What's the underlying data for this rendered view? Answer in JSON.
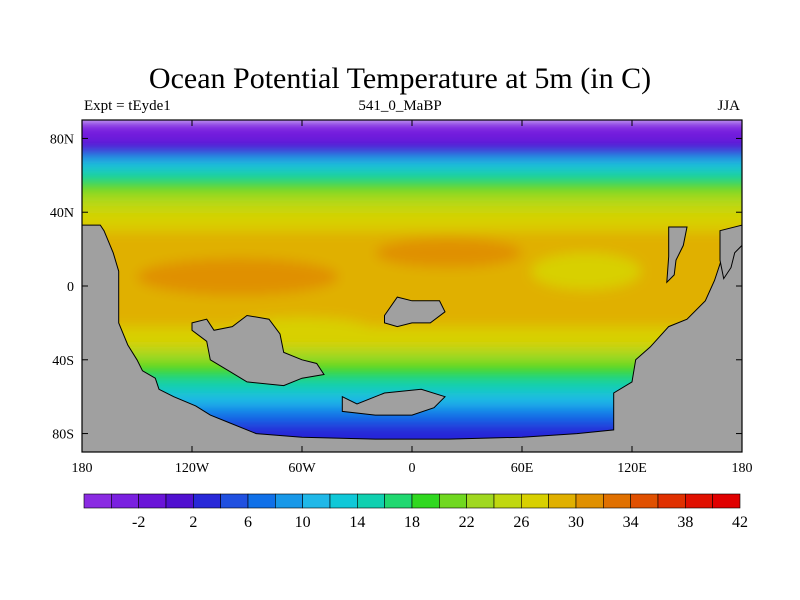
{
  "figure": {
    "title": "Ocean Potential Temperature at 5m (in C)",
    "left_label": "Expt = tEyde1",
    "center_label": "541_0_MaBP",
    "right_label": "JJA"
  },
  "map": {
    "lon_range": [
      -180,
      180
    ],
    "lat_range": [
      -90,
      90
    ],
    "x_ticks": [
      {
        "value": -180,
        "label": "180"
      },
      {
        "value": -120,
        "label": "120W"
      },
      {
        "value": -60,
        "label": "60W"
      },
      {
        "value": 0,
        "label": "0"
      },
      {
        "value": 60,
        "label": "60E"
      },
      {
        "value": 120,
        "label": "120E"
      },
      {
        "value": 180,
        "label": "180"
      }
    ],
    "y_ticks": [
      {
        "value": 80,
        "label": "80N"
      },
      {
        "value": 40,
        "label": "40N"
      },
      {
        "value": 0,
        "label": "0"
      },
      {
        "value": -40,
        "label": "40S"
      },
      {
        "value": -80,
        "label": "80S"
      }
    ],
    "land_color": "#a0a0a0",
    "temperature_bands": [
      {
        "from_lat": 90,
        "to_lat": 82,
        "level": -4
      },
      {
        "from_lat": 82,
        "to_lat": 76,
        "level": -2
      },
      {
        "from_lat": 76,
        "to_lat": 70,
        "level": 2
      },
      {
        "from_lat": 70,
        "to_lat": 64,
        "level": 10
      },
      {
        "from_lat": 64,
        "to_lat": 58,
        "level": 14
      },
      {
        "from_lat": 58,
        "to_lat": 52,
        "level": 18
      },
      {
        "from_lat": 52,
        "to_lat": 46,
        "level": 22
      },
      {
        "from_lat": 46,
        "to_lat": 40,
        "level": 24
      },
      {
        "from_lat": 40,
        "to_lat": 30,
        "level": 26
      },
      {
        "from_lat": 30,
        "to_lat": -22,
        "level": 28
      },
      {
        "from_lat": -22,
        "to_lat": -34,
        "level": 26
      },
      {
        "from_lat": -34,
        "to_lat": -42,
        "level": 22
      },
      {
        "from_lat": -42,
        "to_lat": -50,
        "level": 18
      },
      {
        "from_lat": -50,
        "to_lat": -58,
        "level": 14
      },
      {
        "from_lat": -58,
        "to_lat": -66,
        "level": 10
      },
      {
        "from_lat": -66,
        "to_lat": -74,
        "level": 6
      },
      {
        "from_lat": -74,
        "to_lat": -90,
        "level": 2
      }
    ],
    "warm_pools": [
      {
        "lon": -95,
        "lat": 5,
        "rlon": 55,
        "rlat": 10,
        "level": 30
      },
      {
        "lon": 20,
        "lat": 18,
        "rlon": 40,
        "rlat": 8,
        "level": 30
      },
      {
        "lon": 95,
        "lat": 8,
        "rlon": 30,
        "rlat": 10,
        "level": 26
      },
      {
        "lon": -60,
        "lat": -25,
        "rlon": 40,
        "rlat": 8,
        "level": 26
      }
    ],
    "land_masses": [
      {
        "name": "west-continent",
        "points": [
          [
            -180,
            33
          ],
          [
            -170,
            33
          ],
          [
            -168,
            30
          ],
          [
            -163,
            18
          ],
          [
            -160,
            8
          ],
          [
            -160,
            -20
          ],
          [
            -155,
            -32
          ],
          [
            -150,
            -40
          ],
          [
            -147,
            -46
          ],
          [
            -140,
            -50
          ],
          [
            -138,
            -56
          ],
          [
            -130,
            -60
          ],
          [
            -118,
            -65
          ],
          [
            -110,
            -70
          ],
          [
            -100,
            -74
          ],
          [
            -85,
            -80
          ],
          [
            -60,
            -82
          ],
          [
            -20,
            -83
          ],
          [
            20,
            -83
          ],
          [
            60,
            -82
          ],
          [
            90,
            -80
          ],
          [
            110,
            -78
          ],
          [
            110,
            -58
          ],
          [
            120,
            -52
          ],
          [
            122,
            -40
          ],
          [
            130,
            -33
          ],
          [
            140,
            -22
          ],
          [
            150,
            -18
          ],
          [
            160,
            -8
          ],
          [
            165,
            3
          ],
          [
            170,
            18
          ],
          [
            175,
            30
          ],
          [
            180,
            33
          ],
          [
            180,
            -90
          ],
          [
            -180,
            -90
          ]
        ]
      },
      {
        "name": "south-continent-inner",
        "points": [
          [
            -120,
            -20
          ],
          [
            -112,
            -18
          ],
          [
            -108,
            -24
          ],
          [
            -98,
            -22
          ],
          [
            -90,
            -16
          ],
          [
            -78,
            -18
          ],
          [
            -72,
            -26
          ],
          [
            -70,
            -36
          ],
          [
            -60,
            -40
          ],
          [
            -52,
            -42
          ],
          [
            -48,
            -48
          ],
          [
            -60,
            -50
          ],
          [
            -70,
            -54
          ],
          [
            -90,
            -52
          ],
          [
            -100,
            -46
          ],
          [
            -110,
            -40
          ],
          [
            -112,
            -30
          ],
          [
            -120,
            -24
          ]
        ]
      },
      {
        "name": "east-island",
        "points": [
          [
            -15,
            -16
          ],
          [
            -8,
            -6
          ],
          [
            0,
            -8
          ],
          [
            15,
            -8
          ],
          [
            18,
            -14
          ],
          [
            10,
            -20
          ],
          [
            0,
            -20
          ],
          [
            -8,
            -22
          ],
          [
            -15,
            -20
          ]
        ]
      },
      {
        "name": "south-island",
        "points": [
          [
            -38,
            -60
          ],
          [
            -30,
            -64
          ],
          [
            -15,
            -58
          ],
          [
            5,
            -56
          ],
          [
            18,
            -60
          ],
          [
            12,
            -66
          ],
          [
            0,
            -70
          ],
          [
            -20,
            -70
          ],
          [
            -38,
            -68
          ]
        ]
      },
      {
        "name": "north-peninsula",
        "points": [
          [
            140,
            32
          ],
          [
            150,
            32
          ],
          [
            148,
            22
          ],
          [
            144,
            14
          ],
          [
            143,
            6
          ],
          [
            139,
            2
          ],
          [
            140,
            16
          ]
        ]
      },
      {
        "name": "east-coast",
        "points": [
          [
            168,
            30
          ],
          [
            180,
            33
          ],
          [
            180,
            22
          ],
          [
            176,
            18
          ],
          [
            174,
            10
          ],
          [
            170,
            4
          ],
          [
            168,
            14
          ]
        ]
      }
    ]
  },
  "colorbar": {
    "labels": [
      "-2",
      "2",
      "6",
      "10",
      "14",
      "18",
      "22",
      "26",
      "30",
      "34",
      "38",
      "42"
    ],
    "colors": [
      "#8a2be2",
      "#7a20e0",
      "#6a14d8",
      "#5010d0",
      "#2828d8",
      "#2050e0",
      "#1070e8",
      "#1898e8",
      "#20b8e8",
      "#10c8d8",
      "#10d0b0",
      "#20d870",
      "#30d820",
      "#70d820",
      "#a0d820",
      "#c0d810",
      "#d8d000",
      "#e0b000",
      "#e09000",
      "#e07000",
      "#e05000",
      "#e03000",
      "#e01000",
      "#e00000"
    ],
    "levels": [
      -6,
      -4,
      -2,
      0,
      2,
      4,
      6,
      8,
      10,
      12,
      14,
      16,
      18,
      20,
      22,
      24,
      26,
      28,
      30,
      32,
      34,
      36,
      38,
      40
    ]
  }
}
